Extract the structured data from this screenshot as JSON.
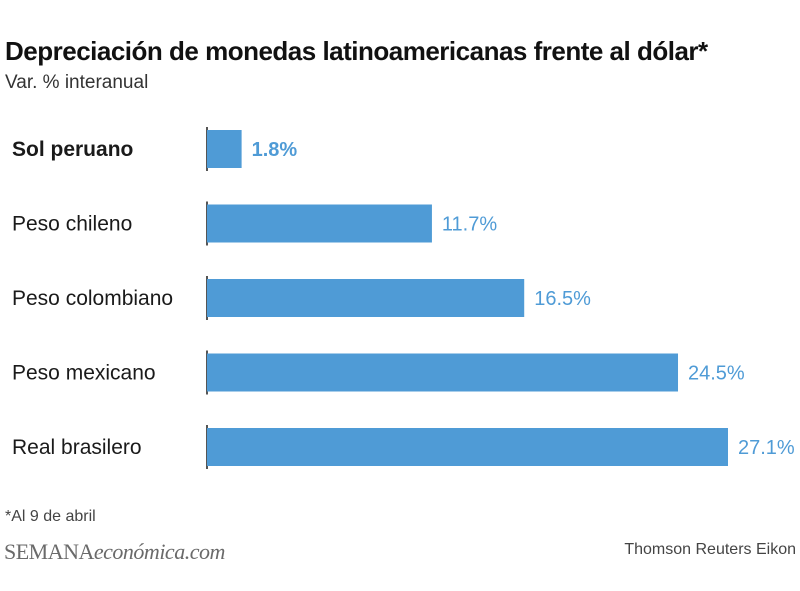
{
  "title": "Depreciación de monedas latinoamericanas frente al dólar*",
  "subtitle": "Var. % interanual",
  "footnote": "*Al 9 de abril",
  "brand": {
    "part1": "SEMANA",
    "part2": "económica.com"
  },
  "source": "Thomson Reuters Eikon",
  "colors": {
    "bar": "#4f9bd6",
    "label": "#4f9bd6",
    "axis": "#555555",
    "text": "#1a1a1a"
  },
  "chart_data": {
    "type": "bar",
    "orientation": "horizontal",
    "title": "Depreciación de monedas latinoamericanas frente al dólar*",
    "subtitle": "Var. % interanual",
    "categories": [
      "Sol peruano",
      "Peso chileno",
      "Peso colombiano",
      "Peso mexicano",
      "Real brasilero"
    ],
    "values": [
      1.8,
      11.7,
      16.5,
      24.5,
      27.1
    ],
    "value_labels": [
      "1.8%",
      "11.7%",
      "16.5%",
      "24.5%",
      "27.1%"
    ],
    "highlighted_category": "Sol peruano",
    "xlim": [
      0,
      27.1
    ],
    "xlabel": "",
    "ylabel": "",
    "grid": false
  }
}
